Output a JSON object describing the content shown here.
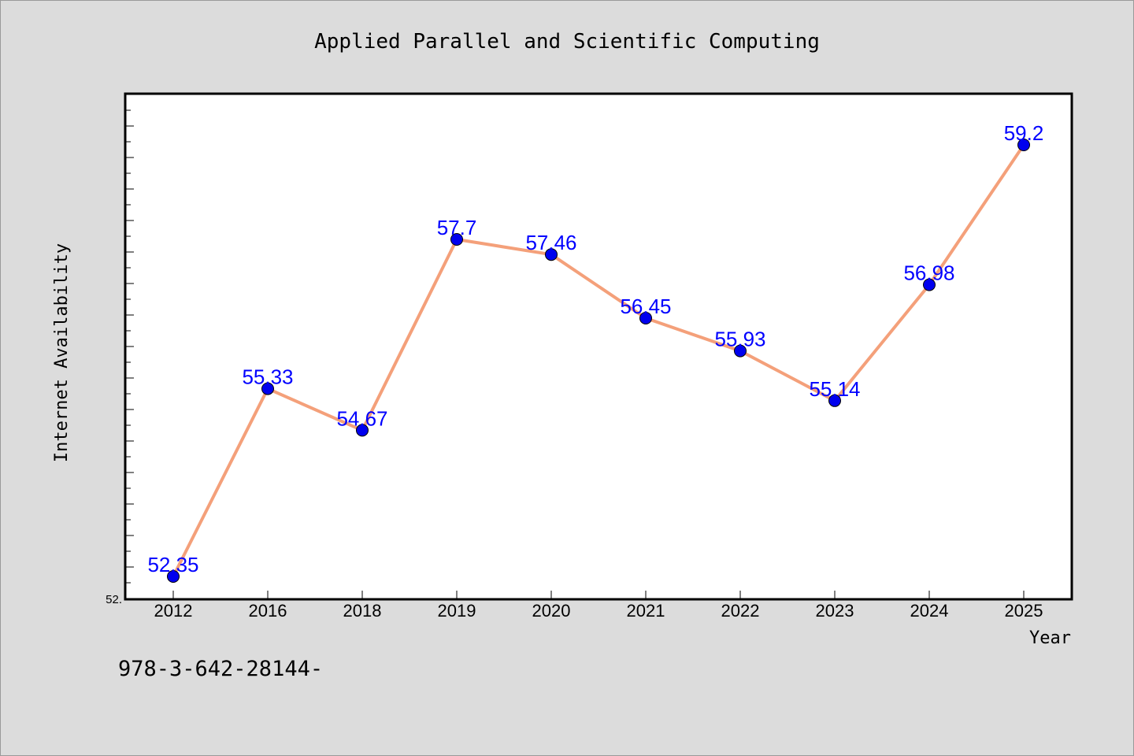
{
  "chart_data": {
    "type": "line",
    "title": "Applied Parallel and Scientific Computing",
    "xlabel": "Year",
    "ylabel": "Internet Availability",
    "categories": [
      "2012",
      "2016",
      "2018",
      "2019",
      "2020",
      "2021",
      "2022",
      "2023",
      "2024",
      "2025"
    ],
    "series": [
      {
        "values": [
          52.35,
          55.33,
          54.67,
          57.7,
          57.46,
          56.45,
          55.93,
          55.14,
          56.98,
          59.2
        ],
        "data_labels": [
          "52.35",
          "55.33",
          "54.67",
          "57.7",
          "57.46",
          "56.45",
          "55.93",
          "55.14",
          "56.98",
          "59.2"
        ]
      }
    ],
    "ylim": [
      52.0,
      60.0
    ],
    "yticks": [
      52.0
    ],
    "ytick_labels": [
      "52."
    ],
    "grid": false,
    "colors": {
      "line": "#f4a07a",
      "marker": "#0000ee",
      "label": "#0000ff",
      "plot_background": "#ffffff",
      "figure_background": "#dcdcdc"
    }
  },
  "footer_text": "978-3-642-28144-"
}
